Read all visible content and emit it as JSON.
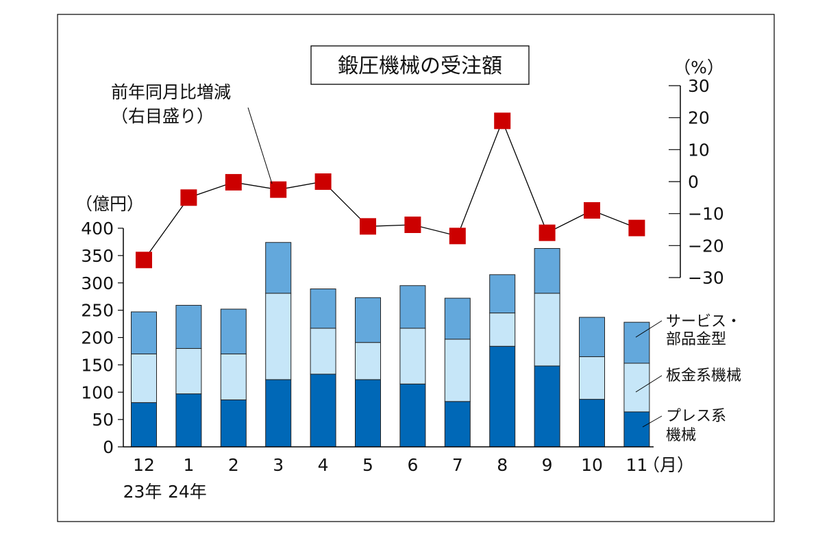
{
  "chart_data": {
    "type": "bar",
    "stacked": true,
    "title": "鍛圧機械の受注額",
    "left_axis": {
      "unit_label": "（億円）",
      "ylim": [
        0,
        400
      ],
      "ticks": [
        0,
        50,
        100,
        150,
        200,
        250,
        300,
        350,
        400
      ]
    },
    "right_axis": {
      "unit_label": "（%）",
      "ylim": [
        -30,
        30
      ],
      "ticks": [
        30,
        20,
        10,
        0,
        -10,
        -20,
        -30
      ],
      "tick_labels": [
        "30",
        "20",
        "10",
        "0",
        "−10",
        "−20",
        "−30"
      ]
    },
    "categories": [
      "12",
      "1",
      "2",
      "3",
      "4",
      "5",
      "6",
      "7",
      "8",
      "9",
      "10",
      "11"
    ],
    "x_unit_label": "（月）",
    "year_labels": [
      {
        "index": 0,
        "text": "23年"
      },
      {
        "index": 1,
        "text": "24年"
      }
    ],
    "series": [
      {
        "name": "プレス系機械",
        "name_lines": [
          "プレス系",
          "機械"
        ],
        "color": "#0068b7",
        "values": [
          81,
          97,
          86,
          123,
          133,
          123,
          115,
          83,
          184,
          148,
          87,
          64
        ]
      },
      {
        "name": "板金系機械",
        "name_lines": [
          "板金系機械"
        ],
        "color": "#c6e6f8",
        "values": [
          89,
          83,
          84,
          158,
          84,
          68,
          102,
          114,
          61,
          133,
          78,
          89
        ]
      },
      {
        "name": "サービス・部品金型",
        "name_lines": [
          "サービス・",
          "部品金型"
        ],
        "color": "#63a8dc",
        "values": [
          77,
          79,
          82,
          93,
          72,
          82,
          78,
          75,
          70,
          82,
          72,
          75
        ]
      }
    ],
    "line_series": {
      "name": "前年同月比増減",
      "note_lines": [
        "前年同月比増減",
        "（右目盛り）"
      ],
      "axis": "right",
      "color": "#cc0000",
      "values": [
        -24.5,
        -5.0,
        -0.2,
        -2.5,
        0.0,
        -14.0,
        -13.5,
        -17.0,
        19.0,
        -16.0,
        -9.0,
        -14.5
      ]
    }
  }
}
